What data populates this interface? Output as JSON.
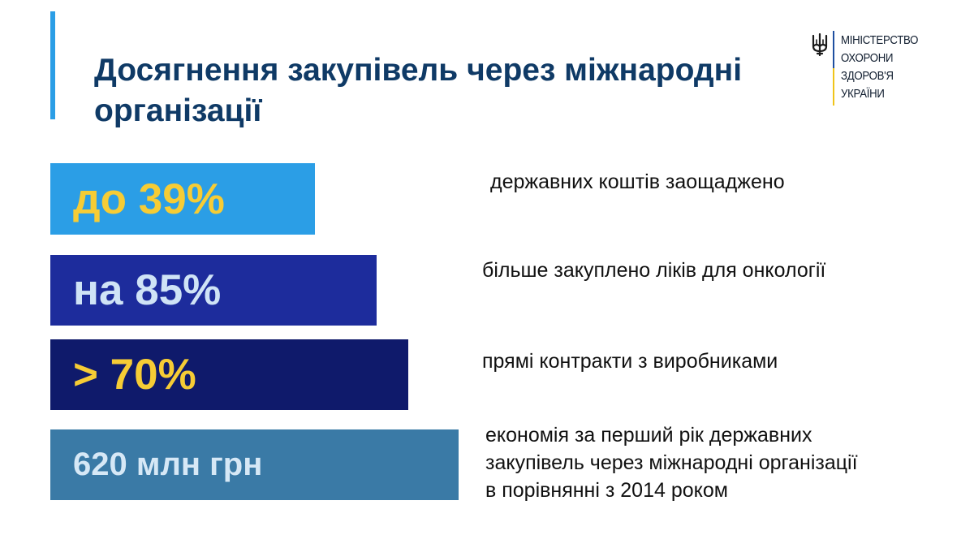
{
  "title": "Досягнення закупівель через міжнародні організації",
  "logo": {
    "lines": [
      "МІНІСТЕРСТВО",
      "ОХОРОНИ",
      "ЗДОРОВ'Я",
      "УКРАЇНИ"
    ],
    "icon": "trident-icon",
    "colors": {
      "blue": "#1f4fa0",
      "yellow": "#f0c419"
    }
  },
  "stats": [
    {
      "value": "до 39%",
      "description": [
        "державних коштів заощаджено"
      ],
      "bar_color": "#2b9ee6",
      "value_color": "#f6cc35"
    },
    {
      "value": "на 85%",
      "description": [
        "більше закуплено ліків для онкології"
      ],
      "bar_color": "#1d2c9c",
      "value_color": "#cfe3f6"
    },
    {
      "value": "> 70%",
      "description": [
        "прямі контракти з виробниками"
      ],
      "bar_color": "#0f1a6b",
      "value_color": "#f6cc35"
    },
    {
      "value": "620 млн грн",
      "description": [
        "економія за перший рік державних",
        "закупівель через міжнародні організації",
        "в порівнянні з 2014 роком"
      ],
      "bar_color": "#3a7aa6",
      "value_color": "#d6e8f6"
    }
  ],
  "colors": {
    "accent": "#2b9ee6",
    "title": "#0f3a66"
  }
}
